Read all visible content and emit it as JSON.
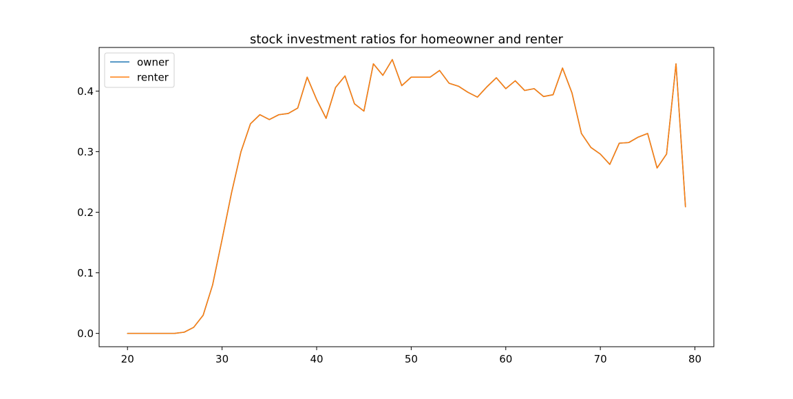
{
  "chart_data": {
    "type": "line",
    "title": "stock investment ratios for homeowner and renter",
    "xlabel": "",
    "ylabel": "",
    "xlim": [
      17,
      82
    ],
    "ylim": [
      -0.022,
      0.472
    ],
    "xticks": [
      20,
      30,
      40,
      50,
      60,
      70,
      80
    ],
    "yticks": [
      0.0,
      0.1,
      0.2,
      0.3,
      0.4
    ],
    "ytick_labels": [
      "0.0",
      "0.1",
      "0.2",
      "0.3",
      "0.4"
    ],
    "grid": false,
    "legend_position": "top-left",
    "x": [
      20,
      21,
      22,
      23,
      24,
      25,
      26,
      27,
      28,
      29,
      30,
      31,
      32,
      33,
      34,
      35,
      36,
      37,
      38,
      39,
      40,
      41,
      42,
      43,
      44,
      45,
      46,
      47,
      48,
      49,
      50,
      51,
      52,
      53,
      54,
      55,
      56,
      57,
      58,
      59,
      60,
      61,
      62,
      63,
      64,
      65,
      66,
      67,
      68,
      69,
      70,
      71,
      72,
      73,
      74,
      75,
      76,
      77,
      78,
      79
    ],
    "series": [
      {
        "name": "owner",
        "color": "#1f77b4",
        "values": [
          0.0,
          0.0,
          0.0,
          0.0,
          0.0,
          0.0,
          0.002,
          0.01,
          0.03,
          0.08,
          0.155,
          0.232,
          0.3,
          0.346,
          0.361,
          0.353,
          0.361,
          0.363,
          0.372,
          0.423,
          0.386,
          0.355,
          0.406,
          0.425,
          0.379,
          0.367,
          0.445,
          0.426,
          0.452,
          0.409,
          0.423,
          0.423,
          0.423,
          0.434,
          0.413,
          0.408,
          0.398,
          0.39,
          0.407,
          0.422,
          0.404,
          0.417,
          0.401,
          0.404,
          0.391,
          0.394,
          0.438,
          0.397,
          0.33,
          0.307,
          0.296,
          0.279,
          0.314,
          0.315,
          0.324,
          0.33,
          0.273,
          0.296,
          0.445,
          0.209
        ]
      },
      {
        "name": "renter",
        "color": "#ff7f0e",
        "values": [
          0.0,
          0.0,
          0.0,
          0.0,
          0.0,
          0.0,
          0.002,
          0.01,
          0.03,
          0.08,
          0.155,
          0.232,
          0.3,
          0.346,
          0.361,
          0.353,
          0.361,
          0.363,
          0.372,
          0.423,
          0.386,
          0.355,
          0.406,
          0.425,
          0.379,
          0.367,
          0.445,
          0.426,
          0.452,
          0.409,
          0.423,
          0.423,
          0.423,
          0.434,
          0.413,
          0.408,
          0.398,
          0.39,
          0.407,
          0.422,
          0.404,
          0.417,
          0.401,
          0.404,
          0.391,
          0.394,
          0.438,
          0.397,
          0.33,
          0.307,
          0.296,
          0.279,
          0.314,
          0.315,
          0.324,
          0.33,
          0.273,
          0.296,
          0.445,
          0.209
        ]
      }
    ]
  }
}
